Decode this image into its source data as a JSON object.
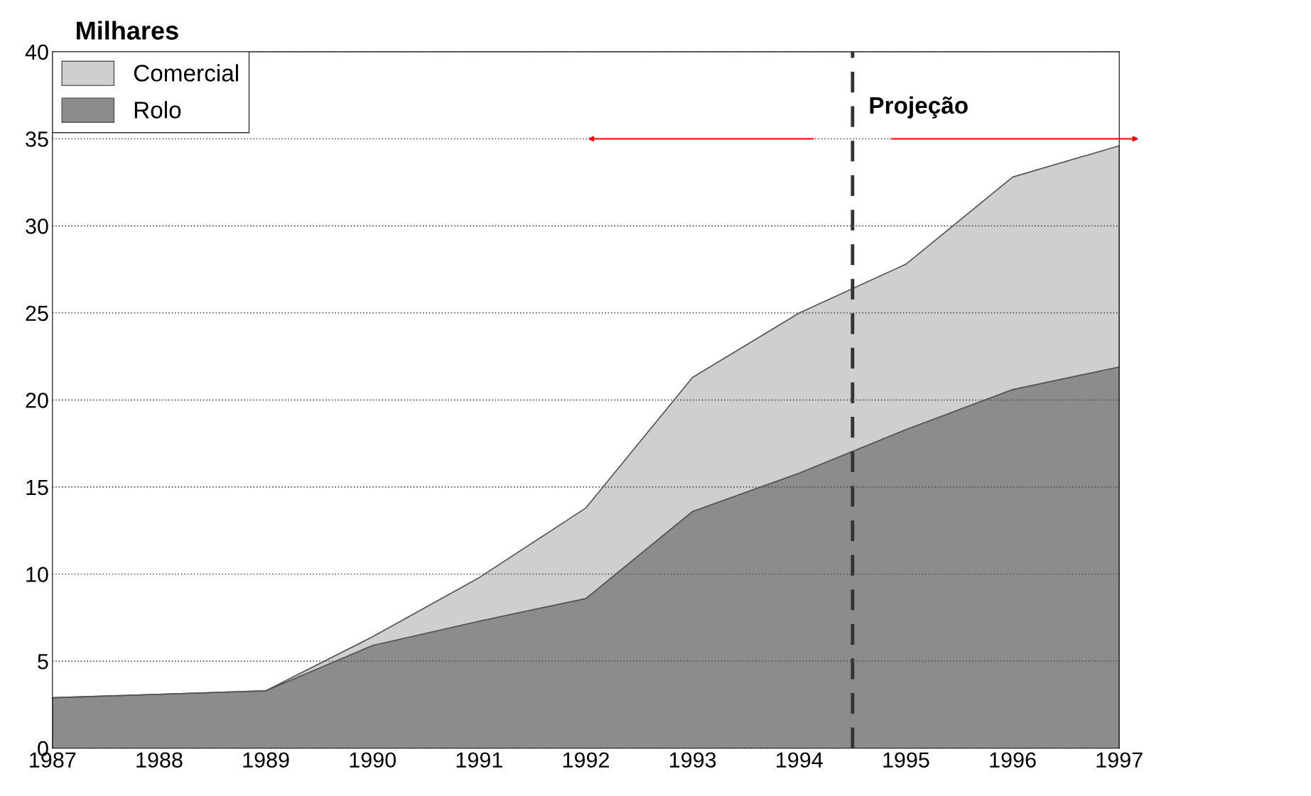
{
  "chart_data": {
    "type": "area",
    "ylabel": "Milhares",
    "stacked": true,
    "x": [
      1987,
      1988,
      1989,
      1990,
      1991,
      1992,
      1993,
      1994,
      1995,
      1996,
      1997
    ],
    "series": [
      {
        "name": "Rolo",
        "color": "#8c8c8c",
        "values": [
          2.9,
          3.1,
          3.3,
          5.9,
          7.3,
          8.6,
          13.6,
          15.8,
          18.3,
          20.6,
          21.9
        ]
      },
      {
        "name": "Comercial",
        "color": "#cfcfcf",
        "values": [
          0,
          0,
          0,
          0.5,
          2.5,
          5.2,
          7.7,
          9.2,
          9.5,
          12.2,
          12.7
        ]
      }
    ],
    "xlim": [
      1987,
      1997
    ],
    "xticks": [
      1987,
      1988,
      1989,
      1990,
      1991,
      1992,
      1993,
      1994,
      1995,
      1996,
      1997
    ],
    "ylim": [
      0,
      40
    ],
    "yticks": [
      0,
      5,
      10,
      15,
      20,
      25,
      30,
      35,
      40
    ],
    "ref_lines": [
      {
        "axis": "x",
        "value": 1994.5,
        "label": "Projeção",
        "color": "#333333",
        "line_style": "dashed"
      }
    ],
    "grid": "y",
    "legend": "top left"
  }
}
